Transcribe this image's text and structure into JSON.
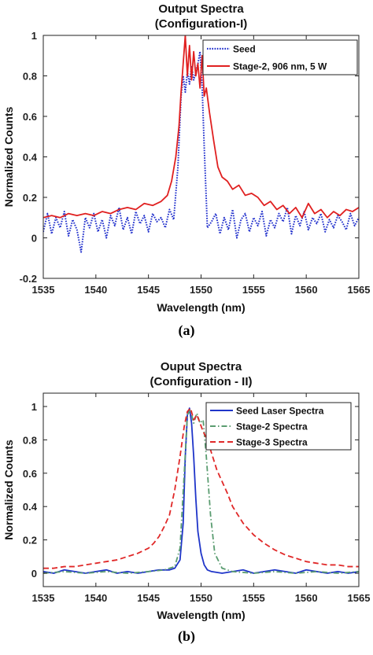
{
  "chart_data": [
    {
      "type": "line",
      "title": "Output Spectra",
      "subtitle": "(Configuration-I)",
      "xlabel": "Wavelength (nm)",
      "ylabel": "Normalized Counts",
      "xlim": [
        1535,
        1565
      ],
      "ylim": [
        -0.2,
        1
      ],
      "xticks": [
        "1535",
        "1540",
        "1545",
        "1550",
        "1555",
        "1560",
        "1565"
      ],
      "yticks": [
        "-0.2",
        "0",
        "0.2",
        "0.4",
        "0.6",
        "0.8",
        "1"
      ],
      "grid": false,
      "legend_position": "top-right",
      "panel_label": "(a)",
      "series": [
        {
          "name": "Seed",
          "color": "#1f2ecc",
          "style": "dotted",
          "x": [
            1535,
            1535.4,
            1535.8,
            1536.2,
            1536.6,
            1537,
            1537.4,
            1537.8,
            1538.2,
            1538.6,
            1539,
            1539.4,
            1539.8,
            1540.2,
            1540.6,
            1541,
            1541.4,
            1541.8,
            1542.2,
            1542.6,
            1543,
            1543.4,
            1543.8,
            1544.2,
            1544.6,
            1545,
            1545.4,
            1545.8,
            1546.2,
            1546.6,
            1547,
            1547.4,
            1547.8,
            1548.1,
            1548.3,
            1548.5,
            1548.7,
            1548.9,
            1549.1,
            1549.3,
            1549.5,
            1549.7,
            1549.9,
            1550.1,
            1550.3,
            1550.6,
            1551,
            1551.4,
            1551.8,
            1552.2,
            1552.6,
            1553,
            1553.4,
            1553.8,
            1554.2,
            1554.6,
            1555,
            1555.4,
            1555.8,
            1556.2,
            1556.6,
            1557,
            1557.4,
            1557.8,
            1558.2,
            1558.6,
            1559,
            1559.4,
            1559.8,
            1560.2,
            1560.6,
            1561,
            1561.4,
            1561.8,
            1562.2,
            1562.6,
            1563,
            1563.4,
            1563.8,
            1564.2,
            1564.6,
            1565
          ],
          "y": [
            0.03,
            0.12,
            0.02,
            0.1,
            0.05,
            0.13,
            0.01,
            0.09,
            0.04,
            -0.07,
            0.1,
            0.05,
            0.12,
            0.03,
            0.09,
            0.0,
            0.11,
            0.06,
            0.15,
            0.04,
            0.1,
            0.02,
            0.13,
            0.07,
            0.11,
            0.03,
            0.12,
            0.08,
            0.1,
            0.05,
            0.14,
            0.09,
            0.35,
            0.7,
            0.8,
            0.72,
            0.82,
            0.76,
            0.85,
            0.78,
            0.82,
            0.86,
            0.92,
            0.75,
            0.45,
            0.05,
            0.08,
            0.12,
            0.02,
            0.1,
            0.04,
            0.14,
            0.0,
            0.09,
            0.12,
            0.03,
            0.1,
            0.06,
            0.13,
            0.01,
            0.09,
            0.05,
            0.12,
            0.08,
            0.15,
            0.02,
            0.11,
            0.06,
            0.13,
            0.04,
            0.1,
            0.07,
            0.12,
            0.03,
            0.09,
            0.05,
            0.11,
            0.08,
            0.04,
            0.12,
            0.06,
            0.1
          ]
        },
        {
          "name": "Stage-2, 906 nm, 5 W",
          "color": "#e02020",
          "style": "solid",
          "x": [
            1535,
            1535.8,
            1536.6,
            1537.4,
            1538.2,
            1539,
            1539.8,
            1540.6,
            1541.4,
            1542.2,
            1543,
            1543.8,
            1544.6,
            1545.4,
            1546.2,
            1546.8,
            1547.2,
            1547.6,
            1547.9,
            1548.1,
            1548.3,
            1548.5,
            1548.7,
            1548.9,
            1549.1,
            1549.3,
            1549.5,
            1549.7,
            1549.9,
            1550.1,
            1550.3,
            1550.5,
            1550.8,
            1551.2,
            1551.6,
            1552,
            1552.5,
            1553,
            1553.6,
            1554.2,
            1554.8,
            1555.4,
            1556,
            1556.6,
            1557.2,
            1557.8,
            1558.4,
            1559,
            1559.6,
            1560.2,
            1560.8,
            1561.4,
            1562,
            1562.6,
            1563.2,
            1563.8,
            1564.4,
            1565
          ],
          "y": [
            0.1,
            0.11,
            0.1,
            0.12,
            0.11,
            0.12,
            0.11,
            0.13,
            0.12,
            0.14,
            0.15,
            0.14,
            0.17,
            0.16,
            0.18,
            0.21,
            0.28,
            0.4,
            0.55,
            0.72,
            0.86,
            1.0,
            0.8,
            0.95,
            0.78,
            0.92,
            0.8,
            0.86,
            0.74,
            0.9,
            0.7,
            0.74,
            0.62,
            0.48,
            0.35,
            0.3,
            0.28,
            0.24,
            0.26,
            0.21,
            0.22,
            0.2,
            0.16,
            0.18,
            0.14,
            0.16,
            0.12,
            0.15,
            0.1,
            0.17,
            0.12,
            0.14,
            0.1,
            0.13,
            0.11,
            0.14,
            0.13,
            0.15
          ]
        }
      ]
    },
    {
      "type": "line",
      "title": "Ouput Spectra",
      "subtitle": "(Configuration - II)",
      "xlabel": "Wavelength (nm)",
      "ylabel": "Normalized Counts",
      "xlim": [
        1535,
        1565
      ],
      "ylim": [
        -0.08,
        1.08
      ],
      "xticks": [
        "1535",
        "1540",
        "1545",
        "1550",
        "1555",
        "1560",
        "1565"
      ],
      "yticks": [
        "0",
        "0.2",
        "0.4",
        "0.6",
        "0.8",
        "1"
      ],
      "grid": false,
      "legend_position": "top-right",
      "panel_label": "(b)",
      "series": [
        {
          "name": "Seed Laser Spectra",
          "color": "#1f35c9",
          "style": "solid",
          "x": [
            1535,
            1536,
            1537,
            1538,
            1539,
            1540,
            1541,
            1542,
            1543,
            1544,
            1545,
            1546,
            1547,
            1547.5,
            1548,
            1548.3,
            1548.5,
            1548.7,
            1548.9,
            1549.1,
            1549.3,
            1549.5,
            1549.7,
            1550,
            1550.3,
            1550.6,
            1551,
            1552,
            1553,
            1554,
            1555,
            1556,
            1557,
            1558,
            1559,
            1560,
            1561,
            1562,
            1563,
            1564,
            1565
          ],
          "y": [
            0.01,
            0.0,
            0.02,
            0.01,
            0.0,
            0.01,
            0.02,
            0.0,
            0.01,
            0.0,
            0.01,
            0.02,
            0.02,
            0.03,
            0.08,
            0.3,
            0.7,
            0.95,
            0.99,
            0.9,
            0.7,
            0.45,
            0.25,
            0.12,
            0.05,
            0.02,
            0.01,
            0.0,
            0.01,
            0.02,
            0.0,
            0.01,
            0.02,
            0.01,
            0.0,
            0.02,
            0.01,
            0.0,
            0.01,
            0.0,
            0.01
          ]
        },
        {
          "name": "Stage-2 Spectra",
          "color": "#5a9c70",
          "style": "dashdot",
          "x": [
            1535,
            1537,
            1539,
            1541,
            1543,
            1545,
            1546.5,
            1547.5,
            1548,
            1548.4,
            1548.7,
            1549,
            1549.3,
            1549.6,
            1549.9,
            1550.2,
            1550.5,
            1550.9,
            1551.3,
            1552,
            1553,
            1555,
            1557,
            1559,
            1561,
            1563,
            1565
          ],
          "y": [
            0.0,
            0.01,
            0.0,
            0.01,
            0.0,
            0.01,
            0.02,
            0.04,
            0.15,
            0.6,
            0.95,
            0.98,
            0.9,
            0.96,
            0.9,
            0.92,
            0.7,
            0.35,
            0.12,
            0.03,
            0.01,
            0.0,
            0.01,
            0.0,
            0.01,
            0.0,
            0.01
          ]
        },
        {
          "name": "Stage-3 Spectra",
          "color": "#e02828",
          "style": "dashed",
          "x": [
            1535,
            1536,
            1537,
            1538,
            1539,
            1540,
            1541,
            1542,
            1543,
            1544,
            1545,
            1545.5,
            1546,
            1546.5,
            1547,
            1547.5,
            1548,
            1548.4,
            1548.7,
            1549,
            1549.3,
            1549.6,
            1549.9,
            1550.2,
            1550.6,
            1551,
            1551.5,
            1552,
            1552.5,
            1553,
            1554,
            1555,
            1556,
            1557,
            1558,
            1559,
            1560,
            1561,
            1562,
            1563,
            1564,
            1565
          ],
          "y": [
            0.03,
            0.03,
            0.04,
            0.04,
            0.05,
            0.06,
            0.07,
            0.08,
            0.1,
            0.12,
            0.15,
            0.18,
            0.22,
            0.28,
            0.35,
            0.5,
            0.7,
            0.88,
            0.97,
            0.99,
            0.92,
            0.95,
            0.9,
            0.85,
            0.8,
            0.72,
            0.62,
            0.55,
            0.48,
            0.4,
            0.3,
            0.23,
            0.18,
            0.14,
            0.11,
            0.09,
            0.07,
            0.06,
            0.05,
            0.05,
            0.04,
            0.04
          ]
        }
      ]
    }
  ]
}
